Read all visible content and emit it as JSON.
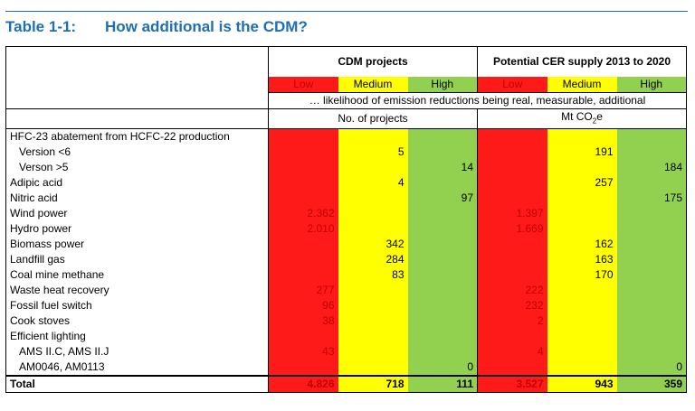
{
  "title": {
    "number": "Table 1-1:",
    "text": "How additional is the CDM?"
  },
  "groups": {
    "cdm": "CDM projects",
    "cer": "Potential CER supply 2013 to 2020"
  },
  "levels": [
    "Low",
    "Medium",
    "High"
  ],
  "subheader": "… likelihood of emission reductions being real, measurable, additional",
  "units": {
    "cdm": "No. of projects",
    "cer_prefix": "Mt CO",
    "cer_sub": "2",
    "cer_suffix": "e"
  },
  "rows": [
    {
      "label": "HFC-23 abatement from HCFC-22 production",
      "indent": false,
      "v": [
        "",
        "",
        "",
        "",
        "",
        ""
      ]
    },
    {
      "label": "Version <6",
      "indent": true,
      "v": [
        "",
        "5",
        "",
        "",
        "191",
        ""
      ]
    },
    {
      "label": "Verson >5",
      "indent": true,
      "v": [
        "",
        "",
        "14",
        "",
        "",
        "184"
      ]
    },
    {
      "label": "Adipic acid",
      "indent": false,
      "v": [
        "",
        "4",
        "",
        "",
        "257",
        ""
      ]
    },
    {
      "label": "Nitric acid",
      "indent": false,
      "v": [
        "",
        "",
        "97",
        "",
        "",
        "175"
      ]
    },
    {
      "label": "Wind power",
      "indent": false,
      "v": [
        "2.362",
        "",
        "",
        "1.397",
        "",
        ""
      ]
    },
    {
      "label": "Hydro power",
      "indent": false,
      "v": [
        "2.010",
        "",
        "",
        "1.669",
        "",
        ""
      ]
    },
    {
      "label": "Biomass power",
      "indent": false,
      "v": [
        "",
        "342",
        "",
        "",
        "162",
        ""
      ]
    },
    {
      "label": "Landfill gas",
      "indent": false,
      "v": [
        "",
        "284",
        "",
        "",
        "163",
        ""
      ]
    },
    {
      "label": "Coal mine methane",
      "indent": false,
      "v": [
        "",
        "83",
        "",
        "",
        "170",
        ""
      ]
    },
    {
      "label": "Waste heat recovery",
      "indent": false,
      "v": [
        "277",
        "",
        "",
        "222",
        "",
        ""
      ]
    },
    {
      "label": "Fossil fuel switch",
      "indent": false,
      "v": [
        "96",
        "",
        "",
        "232",
        "",
        ""
      ]
    },
    {
      "label": "Cook stoves",
      "indent": false,
      "v": [
        "38",
        "",
        "",
        "2",
        "",
        ""
      ]
    },
    {
      "label": "Efficient lighting",
      "indent": false,
      "v": [
        "",
        "",
        "",
        "",
        "",
        ""
      ]
    },
    {
      "label": "AMS II.C, AMS II.J",
      "indent": true,
      "v": [
        "43",
        "",
        "",
        "4",
        "",
        ""
      ]
    },
    {
      "label": "AM0046, AM0113",
      "indent": true,
      "v": [
        "",
        "",
        "0",
        "",
        "",
        "0"
      ]
    }
  ],
  "total": {
    "label": "Total",
    "v": [
      "4.826",
      "718",
      "111",
      "3.527",
      "943",
      "359"
    ]
  },
  "colors": {
    "low": "#ff1a1a",
    "medium": "#ffff00",
    "high": "#92d050",
    "title": "#1f6fb3"
  }
}
